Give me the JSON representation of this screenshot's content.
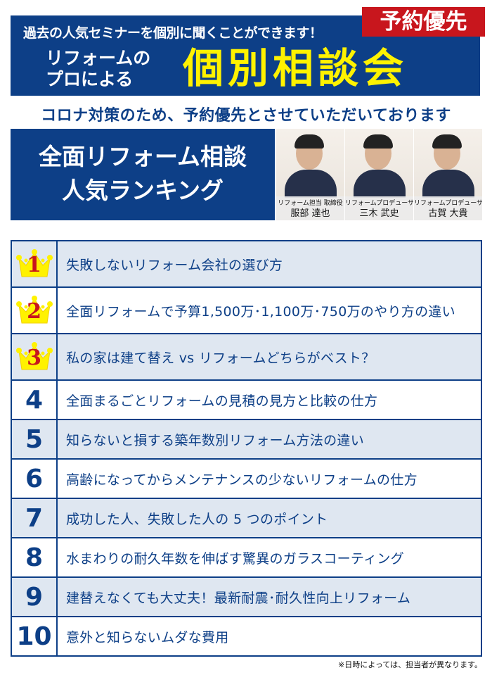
{
  "header": {
    "lead": "過去の人気セミナーを個別に聞くことができます！",
    "badge": "予約優先",
    "pro_line1": "リフォームの",
    "pro_line2": "プロによる",
    "title": "個別相談会",
    "notice": "コロナ対策のため、予約優先とさせていただいております"
  },
  "ranking_title": {
    "line1": "全面リフォーム相談",
    "line2": "人気ランキング"
  },
  "staff": [
    {
      "role": "リフォーム担当 取締役",
      "name": "服部 達也"
    },
    {
      "role": "リフォームプロデューサー",
      "name": "三木 武史"
    },
    {
      "role": "リフォームプロデューサー",
      "name": "古賀 大貴"
    }
  ],
  "ranking": [
    {
      "rank": "1",
      "topic": "失敗しないリフォーム会社の選び方"
    },
    {
      "rank": "2",
      "topic": "全面リフォームで予算1,500万･1,100万･750万のやり方の違い"
    },
    {
      "rank": "3",
      "topic": "私の家は建て替え vs リフォームどちらがベスト？"
    },
    {
      "rank": "4",
      "topic": "全面まるごとリフォームの見積の見方と比較の仕方"
    },
    {
      "rank": "5",
      "topic": "知らないと損する築年数別リフォーム方法の違い"
    },
    {
      "rank": "6",
      "topic": "高齢になってからメンテナンスの少ないリフォームの仕方"
    },
    {
      "rank": "7",
      "topic": "成功した人、失敗した人の 5 つのポイント"
    },
    {
      "rank": "8",
      "topic": "水まわりの耐久年数を伸ばす驚異のガラスコーティング"
    },
    {
      "rank": "9",
      "topic": "建替えなくても大丈夫！最新耐震･耐久性向上リフォーム"
    },
    {
      "rank": "10",
      "topic": "意外と知らないムダな費用"
    }
  ],
  "footnote": "※日時によっては、担当者が異なります。",
  "colors": {
    "navy": "#0d3f87",
    "red": "#c8161d",
    "yellow": "#fff200",
    "row_tint": "#dfe7f1"
  },
  "icons": {
    "top3": "crown-icon"
  }
}
